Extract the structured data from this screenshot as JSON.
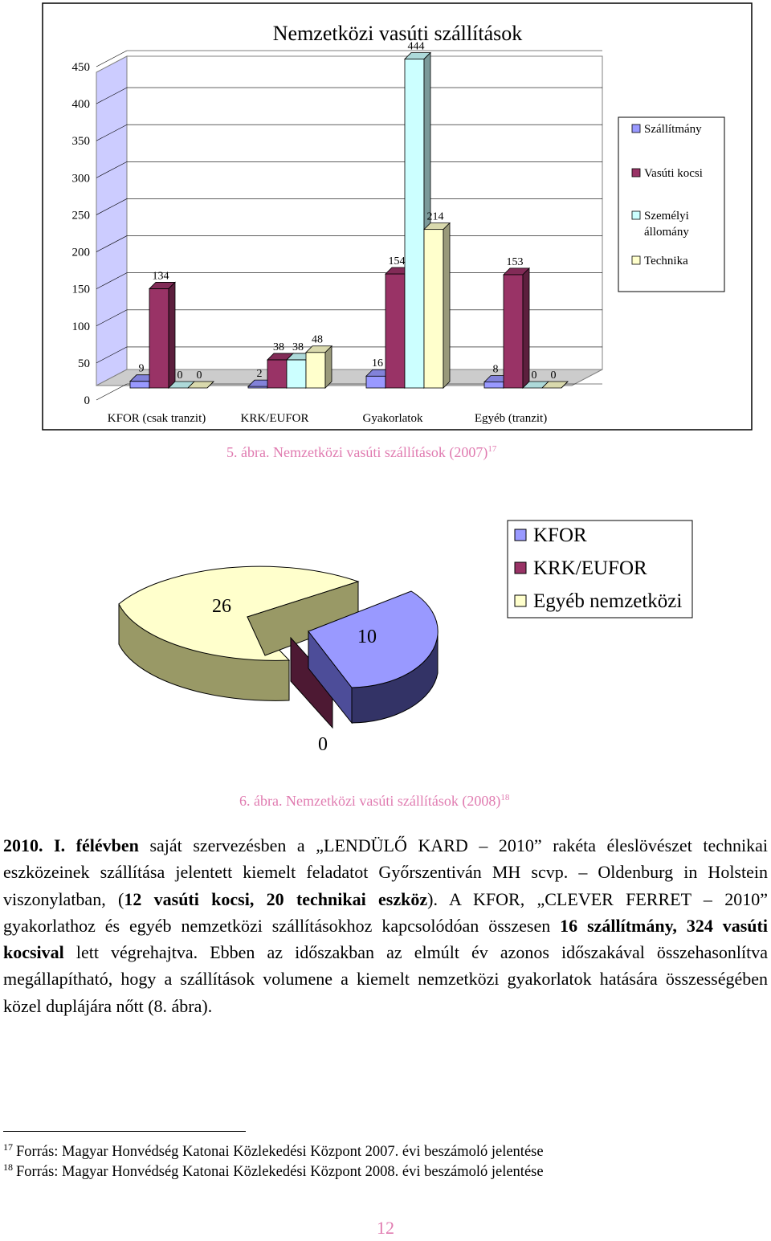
{
  "chart1": {
    "title": "Nemzetközi vasúti szállítások",
    "y_ticks": [
      "450",
      "400",
      "350",
      "300",
      "250",
      "200",
      "150",
      "100",
      "50",
      "0"
    ],
    "categories": [
      "KFOR (csak tranzit)",
      "KRK/EUFOR",
      "Gyakorlatok",
      "Egyéb (tranzit)"
    ],
    "legend": [
      "Szállítmány",
      "Vasúti kocsi",
      "Személyi állomány",
      "Technika"
    ],
    "colors": [
      "#9999ff",
      "#993366",
      "#ccffff",
      "#ffffcc"
    ],
    "caption": "5. ábra. Nemzetközi vasúti szállítások (2007)",
    "caption_ref": "17"
  },
  "chart_data": [
    {
      "type": "bar",
      "title": "Nemzetközi vasúti szállítások",
      "categories": [
        "KFOR (csak tranzit)",
        "KRK/EUFOR",
        "Gyakorlatok",
        "Egyéb (tranzit)"
      ],
      "series": [
        {
          "name": "Szállítmány",
          "values": [
            9,
            2,
            16,
            8
          ]
        },
        {
          "name": "Vasúti kocsi",
          "values": [
            134,
            38,
            154,
            153
          ]
        },
        {
          "name": "Személyi állomány",
          "values": [
            0,
            38,
            444,
            0
          ]
        },
        {
          "name": "Technika",
          "values": [
            0,
            48,
            214,
            0
          ]
        }
      ],
      "ylim": [
        0,
        450
      ],
      "grid": true,
      "legend_position": "right"
    },
    {
      "type": "pie",
      "labels": [
        "KFOR",
        "KRK/EUFOR",
        "Egyéb nemzetközi"
      ],
      "values": [
        10,
        0,
        26
      ],
      "legend_position": "top-right"
    }
  ],
  "chart2": {
    "slice_labels": [
      "26",
      "10",
      "0"
    ],
    "legend": [
      "KFOR",
      "KRK/EUFOR",
      "Egyéb nemzetközi"
    ],
    "caption": "6. ábra. Nemzetközi vasúti szállítások (2008)",
    "caption_ref": "18"
  },
  "paragraph": [
    {
      "t": "2010. I. félévben",
      "b": true
    },
    {
      "t": " saját szervezésben a „LENDÜLŐ KARD – 2010” rakéta éleslövészet technikai eszközeinek szállítása jelentett kiemelt feladatot Győrszentiván MH scvp. – Oldenburg in Holstein viszonylatban, (",
      "b": false
    },
    {
      "t": "12 vasúti kocsi, 20 technikai eszköz",
      "b": true
    },
    {
      "t": "). A KFOR, „CLEVER FERRET – 2010” gyakorlathoz és egyéb nemzetközi szállításokhoz kapcsolódóan összesen ",
      "b": false
    },
    {
      "t": "16 szállítmány, 324 vasúti kocsival",
      "b": true
    },
    {
      "t": " lett végrehajtva. Ebben az időszakban az elmúlt év azonos időszakával összehasonlítva megállapítható, hogy a szállítások volumene a kiemelt nemzetközi gyakorlatok hatására összességében közel duplájára nőtt (8. ábra).",
      "b": false
    }
  ],
  "footnotes": [
    {
      "num": "17",
      "text": "Forrás: Magyar Honvédség Katonai Közlekedési Központ 2007. évi beszámoló jelentése"
    },
    {
      "num": "18",
      "text": "Forrás: Magyar Honvédség Katonai Közlekedési Központ 2008. évi beszámoló jelentése"
    }
  ],
  "page_number": "12"
}
